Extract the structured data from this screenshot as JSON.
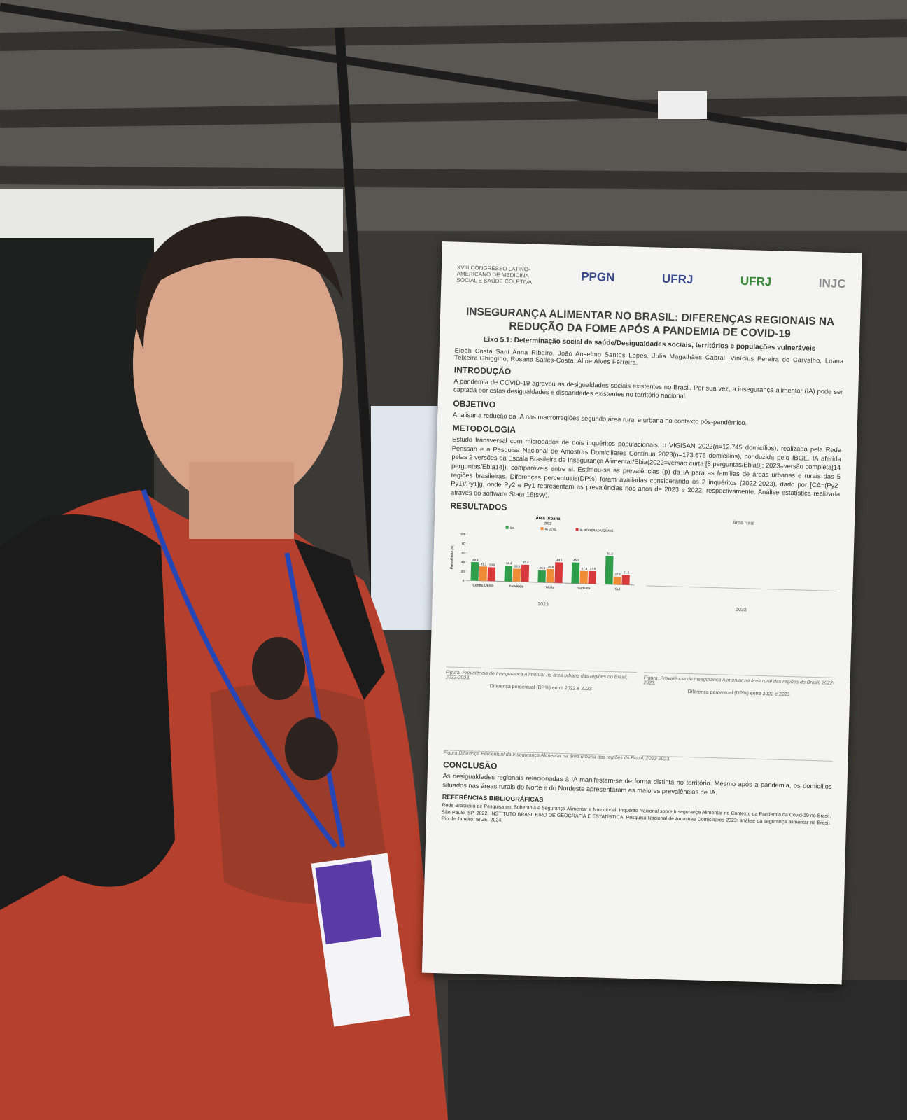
{
  "poster": {
    "logos": [
      "XVIII CONGRESSO LATINO-AMERICANO DE MEDICINA SOCIAL E SAÚDE COLETIVA",
      "PPGN",
      "UFRJ",
      "UFRJ",
      "INJC"
    ],
    "title": "INSEGURANÇA ALIMENTAR NO BRASIL: DIFERENÇAS REGIONAIS NA REDUÇÃO DA FOME APÓS A PANDEMIA DE COVID-19",
    "axis": "Eixo 5.1: Determinação social da saúde/Desigualdades sociais, territórios e populações vulneráveis",
    "authors": "Eloah Costa Sant Anna Ribeiro, João Anselmo Santos Lopes, Julia Magalhães Cabral, Vinícius Pereira de Carvalho, Luana Teixeira Ghiggino, Rosana Salles-Costa, Aline Alves Ferreira.",
    "sections": [
      {
        "heading": "INTRODUÇÃO",
        "text": "A pandemia de COVID-19 agravou as desigualdades sociais existentes no Brasil. Por sua vez, a insegurança alimentar (IA) pode ser captada por estas desigualdades e disparidades existentes no território nacional."
      },
      {
        "heading": "OBJETIVO",
        "text": "Analisar a redução da IA nas macrorregiões segundo área rural e urbana no contexto pós-pandêmico."
      },
      {
        "heading": "METODOLOGIA",
        "text": "Estudo transversal com microdados de dois inquéritos populacionais, o VIGISAN 2022(n=12.745 domicílios), realizada pela Rede Penssan e a Pesquisa Nacional de Amostras Domiciliares Contínua 2023(n=173.676 domicílios), conduzida pelo IBGE. IA aferida pelas 2 versões da Escala Brasileira de Insegurança Alimentar/Ebia(2022=versão curta [8 perguntas/Ebia8]; 2023=versão completa[14 perguntas/Ebia14]), comparáveis entre si. Estimou-se as prevalências (p) da IA para as famílias de áreas urbanas e rurais das 5 regiões brasileiras. Diferenças percentuais(DP%) foram avaliadas considerando os 2 inquéritos (2022-2023), dado por [CΔ=(Py2-Py1)/Py1]g, onde Py2 e Py1 representam as prevalências nos anos de 2023 e 2022, respectivamente. Análise estatística realizada através do software Stata 16(svy)."
      },
      {
        "heading": "RESULTADOS",
        "text": ""
      }
    ],
    "chart_data": {
      "type": "bar",
      "title": "Área urbana",
      "subtitle": "2022",
      "y_label": "Prevalência (%)",
      "categories": [
        "Centro Oeste",
        "Nordeste",
        "Norte",
        "Sudeste",
        "Sul"
      ],
      "series": [
        {
          "name": "SA",
          "color": "#2f9e4a",
          "values": [
            39.9,
            34.4,
            25.9,
            45.2,
            61.3
          ]
        },
        {
          "name": "IA LEVE",
          "color": "#f08c35",
          "values": [
            31.2,
            28.3,
            29.6,
            27.3,
            17.2
          ]
        },
        {
          "name": "IA MODERADA/GRAVE",
          "color": "#d83a3c",
          "values": [
            29.9,
            37.3,
            44.5,
            27.5,
            21.5
          ]
        }
      ],
      "ylim": [
        0,
        100
      ],
      "yticks": [
        0,
        20,
        40,
        60,
        80,
        100
      ]
    },
    "other_charts": [
      "Área rural",
      "2023",
      "Diferença percentual (DP%) entre 2022 e 2023"
    ],
    "captions": [
      "Figura. Prevalência de Insegurança Alimentar na área urbana das regiões do Brasil, 2022-2023.",
      "Figura. Prevalência de Insegurança Alimentar na área rural das regiões do Brasil, 2022-2023.",
      "Figura Diferença Percentual da Insegurança Alimentar na área urbana das regiões do Brasil, 2022-2023."
    ],
    "conclusion_heading": "CONCLUSÃO",
    "conclusion": "As desigualdades regionais relacionadas à IA manifestam-se de forma distinta no território. Mesmo após a pandemia, os domicílios situados nas áreas rurais do Norte e do Nordeste apresentaram as maiores prevalências de IA.",
    "references_heading": "REFERÊNCIAS BIBLIOGRÁFICAS",
    "references": "Rede Brasileira de Pesquisa em Soberania e Segurança Alimentar e Nutricional. Inquérito Nacional sobre Insegurança Alimentar no Contexto da Pandemia da Covid-19 no Brasil. São Paulo, SP, 2022. INSTITUTO BRASILEIRO DE GEOGRAFIA E ESTATÍSTICA. Pesquisa Nacional de Amostras Domiciliares 2023: análise da segurança alimentar no Brasil. Rio de Janeiro: IBGE, 2024."
  }
}
